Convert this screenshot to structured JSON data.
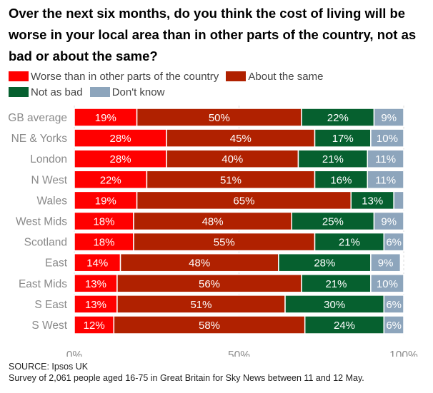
{
  "chart_data": {
    "type": "bar",
    "orientation": "horizontal",
    "stacked": true,
    "title": "Over the next six months, do you think the cost of living will be worse in your local area than in other parts of the country, not as bad or about the same?",
    "categories": [
      "GB average",
      "NE & Yorks",
      "London",
      "N West",
      "Wales",
      "West Mids",
      "Scotland",
      "East",
      "East Mids",
      "S East",
      "S West"
    ],
    "series": [
      {
        "name": "Worse than in other parts of the country",
        "color": "#ff0000",
        "values": [
          19,
          28,
          28,
          22,
          19,
          18,
          18,
          14,
          13,
          13,
          12
        ]
      },
      {
        "name": "About the same",
        "color": "#b02100",
        "values": [
          50,
          45,
          40,
          51,
          65,
          48,
          55,
          48,
          56,
          51,
          58
        ]
      },
      {
        "name": "Not as bad",
        "color": "#06602f",
        "values": [
          22,
          17,
          21,
          16,
          13,
          25,
          21,
          28,
          21,
          30,
          24
        ]
      },
      {
        "name": "Don't know",
        "color": "#8da5bc",
        "values": [
          9,
          10,
          11,
          11,
          3,
          9,
          6,
          9,
          10,
          6,
          6
        ]
      }
    ],
    "hidden_labels": [
      [
        4,
        3
      ]
    ],
    "xlim": [
      0,
      100
    ],
    "xticks": [
      "0%",
      "50%",
      "100%"
    ],
    "legend_position": "top",
    "grid": true
  },
  "source": {
    "line1": "SOURCE: Ipsos UK",
    "line2": "Survey of 2,061 people aged 16-75 in Great Britain for Sky News between 11 and 12 May."
  }
}
